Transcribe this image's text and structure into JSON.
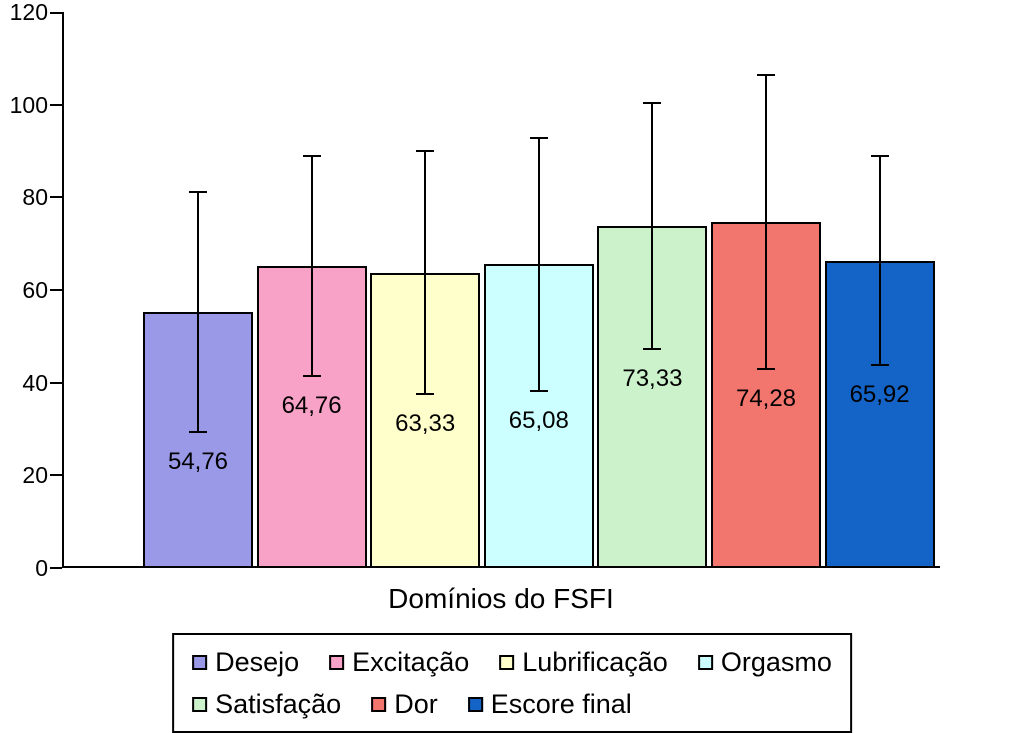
{
  "chart_data": {
    "type": "bar",
    "title": "",
    "xlabel": "Domínios do FSFI",
    "ylabel": "",
    "ylim": [
      0,
      120
    ],
    "yticks": [
      0,
      20,
      40,
      60,
      80,
      100,
      120
    ],
    "grid": false,
    "legend_position": "bottom",
    "categories": [
      "Desejo",
      "Excitação",
      "Lubrificação",
      "Orgasmo",
      "Satisfação",
      "Dor",
      "Escore final"
    ],
    "values": [
      54.76,
      64.76,
      63.33,
      65.08,
      73.33,
      74.28,
      65.92
    ],
    "value_labels": [
      "54,76",
      "64,76",
      "63,33",
      "65,08",
      "73,33",
      "74,28",
      "65,92"
    ],
    "errors": [
      25.9,
      23.8,
      26.3,
      27.4,
      26.6,
      31.8,
      22.6
    ],
    "colors": [
      "#9999E8",
      "#F8A2C8",
      "#FFFFCC",
      "#CCFFFF",
      "#CCF2CC",
      "#F3766E",
      "#1464C8"
    ],
    "bar_border_color": "#000000",
    "error_bar_color": "#000000",
    "axis_color": "#000000",
    "background_color": "#FFFFFF"
  }
}
